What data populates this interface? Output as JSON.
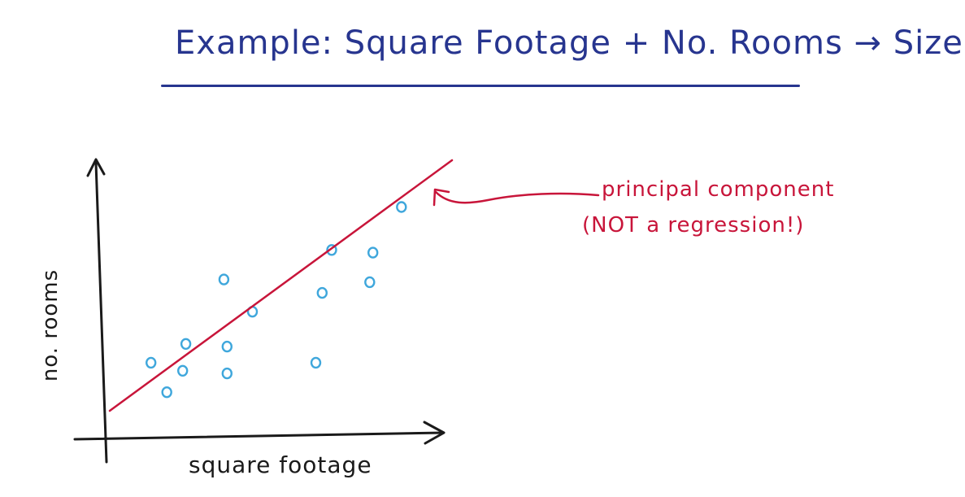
{
  "title": "Example: Square Footage + No. Rooms → Size",
  "colors": {
    "title_ink": "#27358f",
    "axis_ink": "#1a1a1a",
    "point_ink": "#3fa7dc",
    "annotation_ink": "#c8153a"
  },
  "chart_data": {
    "type": "scatter",
    "xlabel": "square footage",
    "ylabel": "no. rooms",
    "points": [
      {
        "x": 0.13,
        "y": 0.27
      },
      {
        "x": 0.18,
        "y": 0.16
      },
      {
        "x": 0.23,
        "y": 0.24
      },
      {
        "x": 0.24,
        "y": 0.34
      },
      {
        "x": 0.36,
        "y": 0.58
      },
      {
        "x": 0.37,
        "y": 0.33
      },
      {
        "x": 0.37,
        "y": 0.23
      },
      {
        "x": 0.45,
        "y": 0.46
      },
      {
        "x": 0.65,
        "y": 0.27
      },
      {
        "x": 0.67,
        "y": 0.53
      },
      {
        "x": 0.7,
        "y": 0.69
      },
      {
        "x": 0.83,
        "y": 0.68
      },
      {
        "x": 0.82,
        "y": 0.57
      },
      {
        "x": 0.92,
        "y": 0.85
      }
    ],
    "line": {
      "label": "principal component"
    }
  },
  "annotation": {
    "line1": "principal component",
    "line2": "(NOT a regression!)"
  }
}
